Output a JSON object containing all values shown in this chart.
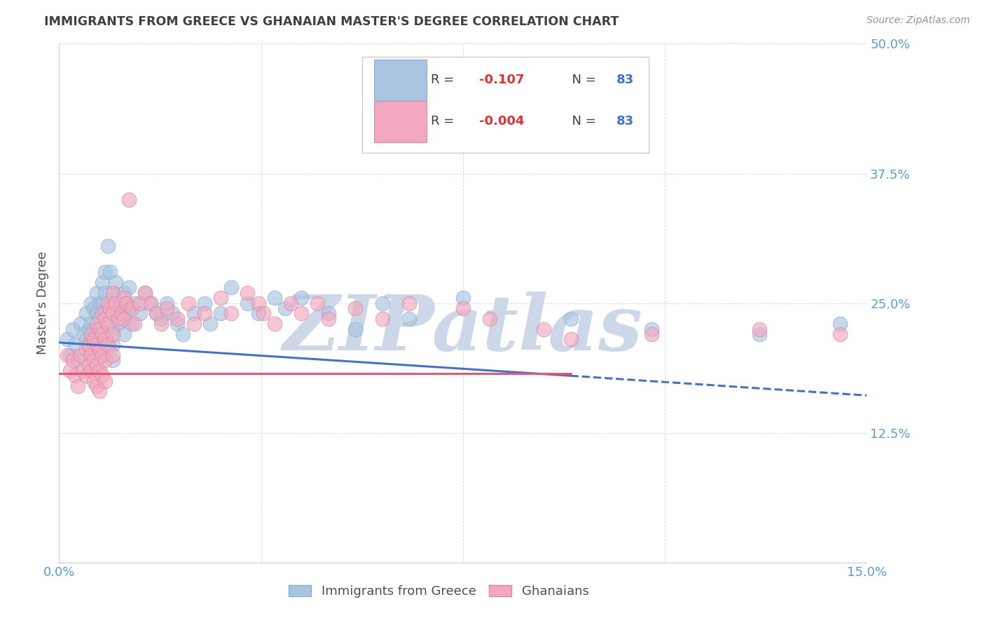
{
  "title": "IMMIGRANTS FROM GREECE VS GHANAIAN MASTER'S DEGREE CORRELATION CHART",
  "source": "Source: ZipAtlas.com",
  "ylabel": "Master's Degree",
  "xlim": [
    0.0,
    15.0
  ],
  "ylim": [
    0.0,
    50.0
  ],
  "yticks": [
    0.0,
    12.5,
    25.0,
    37.5,
    50.0
  ],
  "ytick_labels": [
    "",
    "12.5%",
    "25.0%",
    "37.5%",
    "50.0%"
  ],
  "xticks": [
    0.0,
    3.75,
    7.5,
    11.25,
    15.0
  ],
  "xtick_labels": [
    "0.0%",
    "",
    "",
    "",
    "15.0%"
  ],
  "watermark": "ZIPatlas",
  "watermark_color": "#ccd8e8",
  "background_color": "#ffffff",
  "grid_color": "#d8d8d8",
  "axis_label_color": "#5b9bd5",
  "title_color": "#404040",
  "reg_blue_x0": 0.0,
  "reg_blue_y0": 21.2,
  "reg_blue_x1": 9.5,
  "reg_blue_y1": 18.0,
  "reg_blue_dash_x0": 9.5,
  "reg_blue_dash_y0": 18.0,
  "reg_blue_dash_x1": 15.0,
  "reg_blue_dash_y1": 16.1,
  "reg_pink_x0": 0.0,
  "reg_pink_y0": 18.2,
  "reg_pink_x1": 9.5,
  "reg_pink_y1": 18.2,
  "blue_scatter": [
    [
      0.15,
      21.5
    ],
    [
      0.2,
      20.0
    ],
    [
      0.25,
      22.5
    ],
    [
      0.3,
      21.0
    ],
    [
      0.35,
      19.5
    ],
    [
      0.4,
      23.0
    ],
    [
      0.45,
      22.0
    ],
    [
      0.5,
      24.0
    ],
    [
      0.5,
      21.5
    ],
    [
      0.55,
      22.5
    ],
    [
      0.55,
      20.5
    ],
    [
      0.6,
      25.0
    ],
    [
      0.6,
      23.0
    ],
    [
      0.6,
      21.5
    ],
    [
      0.65,
      24.5
    ],
    [
      0.65,
      22.5
    ],
    [
      0.65,
      21.0
    ],
    [
      0.7,
      26.0
    ],
    [
      0.7,
      24.0
    ],
    [
      0.7,
      22.5
    ],
    [
      0.7,
      21.0
    ],
    [
      0.7,
      19.5
    ],
    [
      0.75,
      25.0
    ],
    [
      0.75,
      23.5
    ],
    [
      0.75,
      22.0
    ],
    [
      0.75,
      20.5
    ],
    [
      0.8,
      27.0
    ],
    [
      0.8,
      25.0
    ],
    [
      0.8,
      23.0
    ],
    [
      0.8,
      21.5
    ],
    [
      0.8,
      20.0
    ],
    [
      0.85,
      28.0
    ],
    [
      0.85,
      26.0
    ],
    [
      0.85,
      24.0
    ],
    [
      0.85,
      22.0
    ],
    [
      0.9,
      30.5
    ],
    [
      0.95,
      28.0
    ],
    [
      1.0,
      26.0
    ],
    [
      1.0,
      24.0
    ],
    [
      1.0,
      22.5
    ],
    [
      1.0,
      21.0
    ],
    [
      1.0,
      19.5
    ],
    [
      1.05,
      27.0
    ],
    [
      1.1,
      25.0
    ],
    [
      1.1,
      23.0
    ],
    [
      1.15,
      24.5
    ],
    [
      1.2,
      26.0
    ],
    [
      1.2,
      24.0
    ],
    [
      1.2,
      22.0
    ],
    [
      1.25,
      25.0
    ],
    [
      1.3,
      26.5
    ],
    [
      1.3,
      24.5
    ],
    [
      1.35,
      23.0
    ],
    [
      1.4,
      25.0
    ],
    [
      1.5,
      24.0
    ],
    [
      1.6,
      26.0
    ],
    [
      1.7,
      25.0
    ],
    [
      1.8,
      24.0
    ],
    [
      1.9,
      23.5
    ],
    [
      2.0,
      25.0
    ],
    [
      2.1,
      24.0
    ],
    [
      2.2,
      23.0
    ],
    [
      2.3,
      22.0
    ],
    [
      2.5,
      24.0
    ],
    [
      2.7,
      25.0
    ],
    [
      2.8,
      23.0
    ],
    [
      3.0,
      24.0
    ],
    [
      3.2,
      26.5
    ],
    [
      3.5,
      25.0
    ],
    [
      3.7,
      24.0
    ],
    [
      4.0,
      25.5
    ],
    [
      4.2,
      24.5
    ],
    [
      4.5,
      25.5
    ],
    [
      5.0,
      24.0
    ],
    [
      5.5,
      22.5
    ],
    [
      6.0,
      25.0
    ],
    [
      6.5,
      23.5
    ],
    [
      7.5,
      25.5
    ],
    [
      9.5,
      23.5
    ],
    [
      11.0,
      22.5
    ],
    [
      13.0,
      22.0
    ],
    [
      14.5,
      23.0
    ]
  ],
  "pink_scatter": [
    [
      0.15,
      20.0
    ],
    [
      0.2,
      18.5
    ],
    [
      0.25,
      19.5
    ],
    [
      0.3,
      18.0
    ],
    [
      0.35,
      17.0
    ],
    [
      0.4,
      20.0
    ],
    [
      0.45,
      18.5
    ],
    [
      0.5,
      20.5
    ],
    [
      0.5,
      18.0
    ],
    [
      0.55,
      21.0
    ],
    [
      0.55,
      19.0
    ],
    [
      0.6,
      22.0
    ],
    [
      0.6,
      20.0
    ],
    [
      0.6,
      18.5
    ],
    [
      0.65,
      21.5
    ],
    [
      0.65,
      19.5
    ],
    [
      0.65,
      17.5
    ],
    [
      0.7,
      23.0
    ],
    [
      0.7,
      21.0
    ],
    [
      0.7,
      19.0
    ],
    [
      0.7,
      17.0
    ],
    [
      0.75,
      22.5
    ],
    [
      0.75,
      20.5
    ],
    [
      0.75,
      18.5
    ],
    [
      0.75,
      16.5
    ],
    [
      0.8,
      24.0
    ],
    [
      0.8,
      22.0
    ],
    [
      0.8,
      20.0
    ],
    [
      0.8,
      18.0
    ],
    [
      0.85,
      23.5
    ],
    [
      0.85,
      21.5
    ],
    [
      0.85,
      19.5
    ],
    [
      0.85,
      17.5
    ],
    [
      0.9,
      25.0
    ],
    [
      0.9,
      23.0
    ],
    [
      0.9,
      21.0
    ],
    [
      0.95,
      24.5
    ],
    [
      1.0,
      26.0
    ],
    [
      1.0,
      24.0
    ],
    [
      1.0,
      22.0
    ],
    [
      1.0,
      20.0
    ],
    [
      1.05,
      25.0
    ],
    [
      1.1,
      23.5
    ],
    [
      1.15,
      24.0
    ],
    [
      1.2,
      25.5
    ],
    [
      1.2,
      23.5
    ],
    [
      1.25,
      25.0
    ],
    [
      1.3,
      35.0
    ],
    [
      1.35,
      24.5
    ],
    [
      1.4,
      23.0
    ],
    [
      1.5,
      25.0
    ],
    [
      1.6,
      26.0
    ],
    [
      1.7,
      25.0
    ],
    [
      1.8,
      24.0
    ],
    [
      1.9,
      23.0
    ],
    [
      2.0,
      24.5
    ],
    [
      2.2,
      23.5
    ],
    [
      2.4,
      25.0
    ],
    [
      2.5,
      23.0
    ],
    [
      2.7,
      24.0
    ],
    [
      3.0,
      25.5
    ],
    [
      3.2,
      24.0
    ],
    [
      3.5,
      26.0
    ],
    [
      3.7,
      25.0
    ],
    [
      3.8,
      24.0
    ],
    [
      4.0,
      23.0
    ],
    [
      4.3,
      25.0
    ],
    [
      4.5,
      24.0
    ],
    [
      4.8,
      25.0
    ],
    [
      5.0,
      23.5
    ],
    [
      5.5,
      24.5
    ],
    [
      6.0,
      23.5
    ],
    [
      6.5,
      25.0
    ],
    [
      7.5,
      24.5
    ],
    [
      8.0,
      23.5
    ],
    [
      9.0,
      22.5
    ],
    [
      9.5,
      21.5
    ],
    [
      11.0,
      22.0
    ],
    [
      13.0,
      22.5
    ],
    [
      14.5,
      22.0
    ]
  ]
}
